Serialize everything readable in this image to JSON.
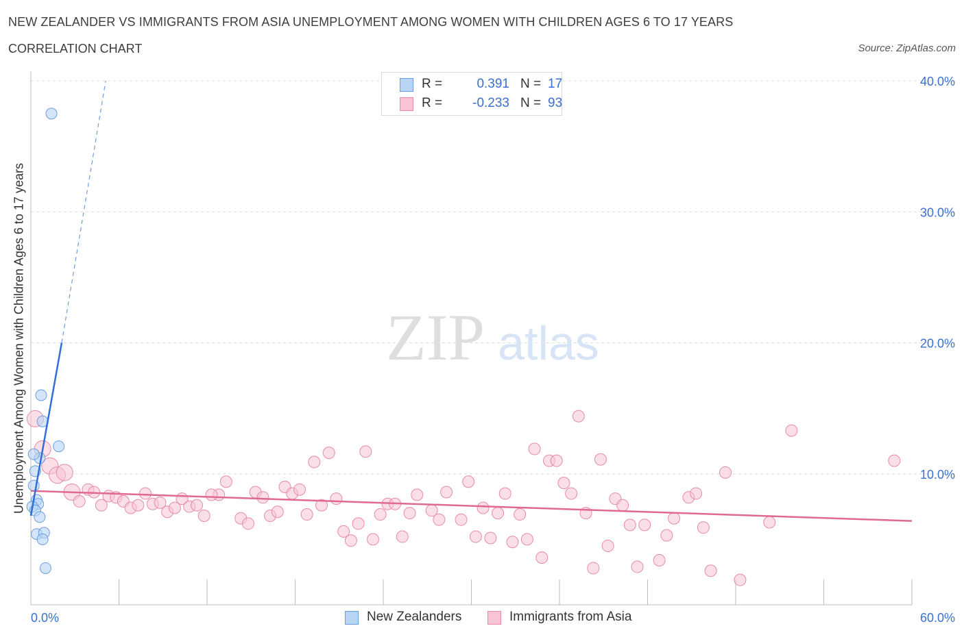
{
  "title": "NEW ZEALANDER VS IMMIGRANTS FROM ASIA UNEMPLOYMENT AMONG WOMEN WITH CHILDREN AGES 6 TO 17 YEARS",
  "subtitle": "CORRELATION CHART",
  "source": "Source: ZipAtlas.com",
  "watermark": {
    "zip": "ZIP",
    "atlas": "atlas"
  },
  "legend": {
    "r_label": "R =",
    "n_label": "N =",
    "rows": [
      {
        "r": "0.391",
        "n": "17"
      },
      {
        "r": "-0.233",
        "n": "93"
      }
    ]
  },
  "colors": {
    "blue_fill": "#b8d4f5",
    "blue_stroke": "#6a9de0",
    "blue_line": "#2f6fd6",
    "pink_fill": "#f8c4d4",
    "pink_stroke": "#e88aa8",
    "pink_line": "#e0698f",
    "tick_text": "#3a6fd0",
    "grid": "#dcdcdc"
  },
  "chart_data": {
    "type": "scatter",
    "title": "NEW ZEALANDER VS IMMIGRANTS FROM ASIA UNEMPLOYMENT AMONG WOMEN WITH CHILDREN AGES 6 TO 17 YEARS",
    "ylabel": "Unemployment Among Women with Children Ages 6 to 17 years",
    "xlabel": "",
    "xlim": [
      0,
      60
    ],
    "ylim": [
      0,
      40
    ],
    "x_tick_labels": [
      "0.0%",
      "60.0%"
    ],
    "y_ticks": [
      10,
      20,
      30,
      40
    ],
    "y_tick_labels": [
      "10.0%",
      "20.0%",
      "30.0%",
      "40.0%"
    ],
    "grid": true,
    "legend_position": "top-center",
    "series": [
      {
        "name": "New Zealanders",
        "points": [
          [
            1.4,
            37.5
          ],
          [
            0.7,
            16.0
          ],
          [
            0.8,
            14.0
          ],
          [
            1.9,
            12.1
          ],
          [
            0.6,
            11.2
          ],
          [
            0.3,
            10.2
          ],
          [
            0.2,
            9.1
          ],
          [
            0.4,
            8.0
          ],
          [
            0.5,
            7.7
          ],
          [
            0.1,
            7.5
          ],
          [
            0.3,
            7.2
          ],
          [
            0.6,
            6.7
          ],
          [
            0.4,
            5.4
          ],
          [
            0.9,
            5.5
          ],
          [
            0.8,
            5.0
          ],
          [
            1.0,
            2.8
          ],
          [
            0.2,
            11.5
          ]
        ],
        "trend": {
          "x": [
            0.0,
            2.1
          ],
          "y": [
            6.8,
            20.0
          ],
          "dashed_to": [
            5.1,
            40.0
          ]
        }
      },
      {
        "name": "Immigrants from Asia",
        "points": [
          [
            0.3,
            14.2
          ],
          [
            0.8,
            11.9
          ],
          [
            1.3,
            10.6
          ],
          [
            1.8,
            9.9
          ],
          [
            2.3,
            10.1
          ],
          [
            2.8,
            8.6
          ],
          [
            3.3,
            7.9
          ],
          [
            3.9,
            8.8
          ],
          [
            4.3,
            8.6
          ],
          [
            4.8,
            7.6
          ],
          [
            5.3,
            8.3
          ],
          [
            5.8,
            8.2
          ],
          [
            6.3,
            7.9
          ],
          [
            6.8,
            7.4
          ],
          [
            7.3,
            7.6
          ],
          [
            7.8,
            8.5
          ],
          [
            8.3,
            7.7
          ],
          [
            8.8,
            7.8
          ],
          [
            9.3,
            7.1
          ],
          [
            9.8,
            7.4
          ],
          [
            10.3,
            8.1
          ],
          [
            10.8,
            7.5
          ],
          [
            11.3,
            7.6
          ],
          [
            11.8,
            6.8
          ],
          [
            12.8,
            8.4
          ],
          [
            13.3,
            9.4
          ],
          [
            12.3,
            8.4
          ],
          [
            14.3,
            6.6
          ],
          [
            14.8,
            6.2
          ],
          [
            15.3,
            8.6
          ],
          [
            15.8,
            8.2
          ],
          [
            16.3,
            6.8
          ],
          [
            16.8,
            7.1
          ],
          [
            17.3,
            9.0
          ],
          [
            17.8,
            8.5
          ],
          [
            18.3,
            8.8
          ],
          [
            18.8,
            6.9
          ],
          [
            19.3,
            10.9
          ],
          [
            19.8,
            7.6
          ],
          [
            20.3,
            11.6
          ],
          [
            20.8,
            8.1
          ],
          [
            21.3,
            5.6
          ],
          [
            21.8,
            4.9
          ],
          [
            22.3,
            6.2
          ],
          [
            22.8,
            11.7
          ],
          [
            23.3,
            5.0
          ],
          [
            23.8,
            6.9
          ],
          [
            24.3,
            7.7
          ],
          [
            24.8,
            7.7
          ],
          [
            25.3,
            5.2
          ],
          [
            25.8,
            7.0
          ],
          [
            26.3,
            8.4
          ],
          [
            27.3,
            7.2
          ],
          [
            27.8,
            6.5
          ],
          [
            28.3,
            8.6
          ],
          [
            29.3,
            6.5
          ],
          [
            29.8,
            9.4
          ],
          [
            30.3,
            5.2
          ],
          [
            30.8,
            7.4
          ],
          [
            31.3,
            5.1
          ],
          [
            31.8,
            7.0
          ],
          [
            32.3,
            8.5
          ],
          [
            32.8,
            4.8
          ],
          [
            33.3,
            6.9
          ],
          [
            33.8,
            5.0
          ],
          [
            34.3,
            11.9
          ],
          [
            34.8,
            3.6
          ],
          [
            35.3,
            11.0
          ],
          [
            35.8,
            11.0
          ],
          [
            36.3,
            9.3
          ],
          [
            36.8,
            8.5
          ],
          [
            37.3,
            14.4
          ],
          [
            37.8,
            7.0
          ],
          [
            38.3,
            2.8
          ],
          [
            38.8,
            11.1
          ],
          [
            39.3,
            4.5
          ],
          [
            39.8,
            8.1
          ],
          [
            40.3,
            7.6
          ],
          [
            40.8,
            6.1
          ],
          [
            41.3,
            2.9
          ],
          [
            41.8,
            6.1
          ],
          [
            42.8,
            3.4
          ],
          [
            43.3,
            5.3
          ],
          [
            43.8,
            6.6
          ],
          [
            44.8,
            8.2
          ],
          [
            45.3,
            8.5
          ],
          [
            45.8,
            5.9
          ],
          [
            46.3,
            2.6
          ],
          [
            47.3,
            10.1
          ],
          [
            48.3,
            1.9
          ],
          [
            50.3,
            6.3
          ],
          [
            51.8,
            13.3
          ],
          [
            58.8,
            11.0
          ]
        ],
        "trend": {
          "x": [
            0.0,
            60.0
          ],
          "y": [
            8.7,
            6.4
          ]
        }
      }
    ]
  },
  "bottom_legend": [
    "New Zealanders",
    "Immigrants from Asia"
  ]
}
